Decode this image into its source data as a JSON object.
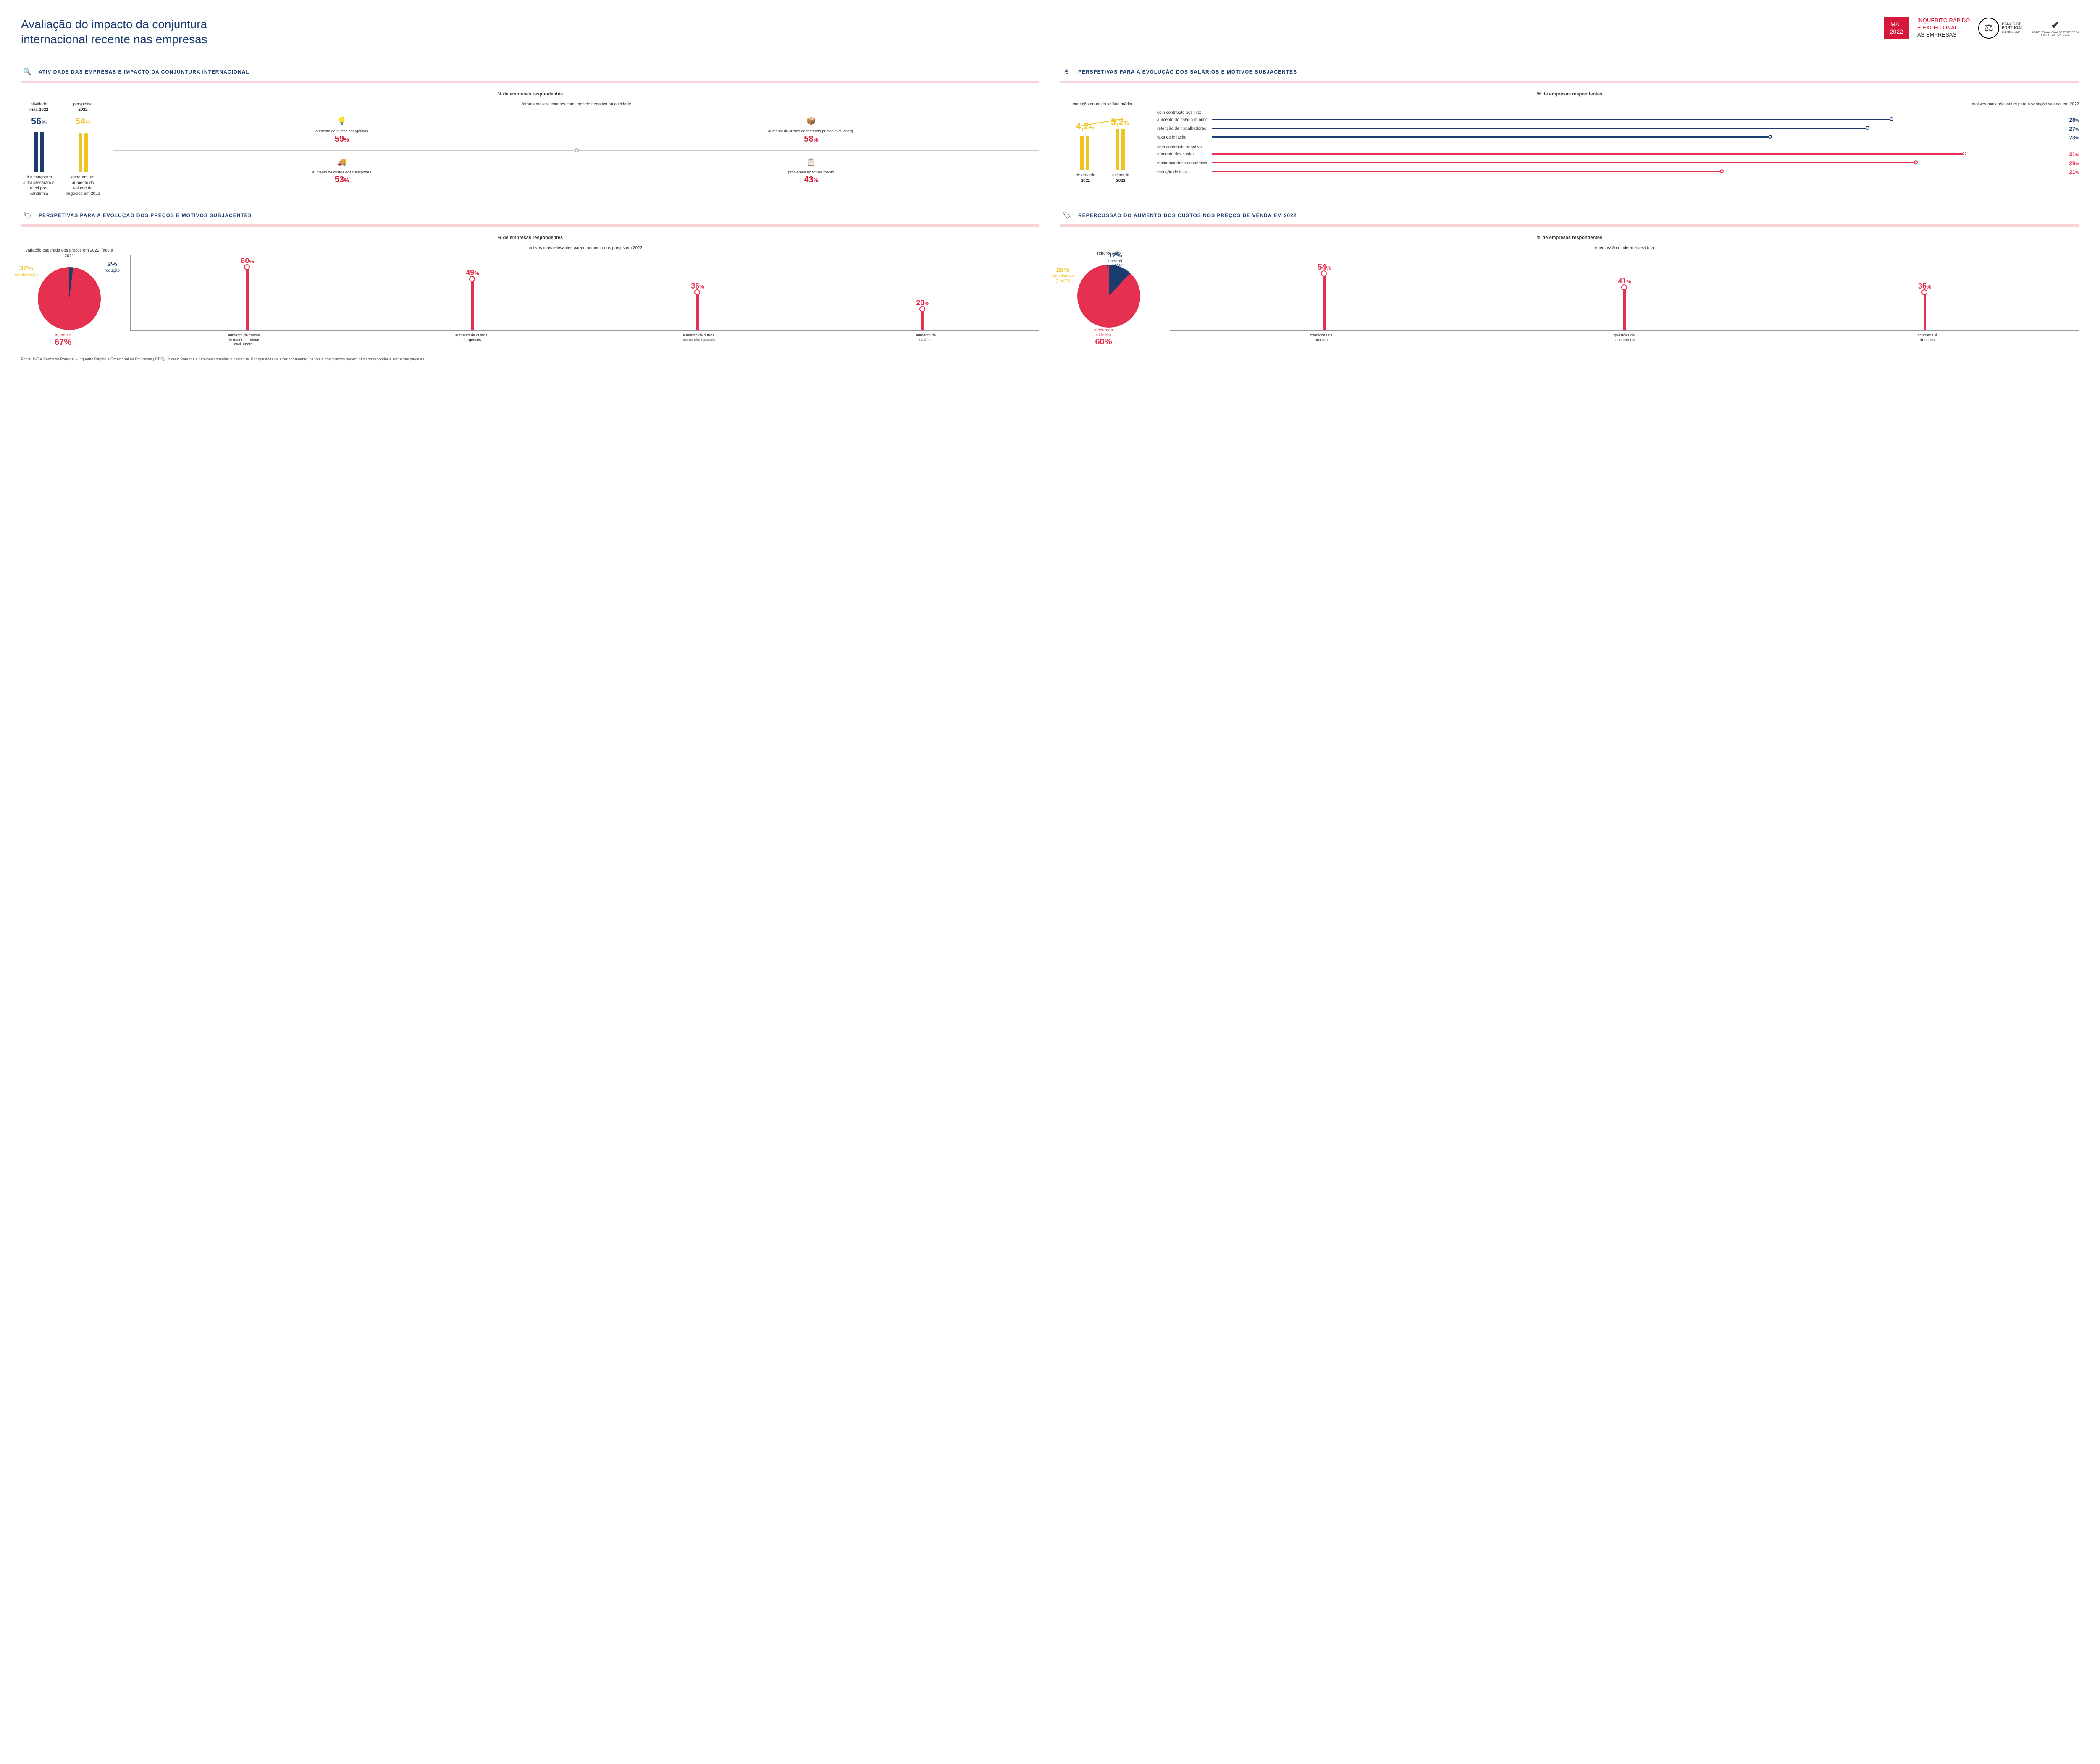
{
  "colors": {
    "navy": "#1a3d6d",
    "red": "#d4193a",
    "pinkred": "#e63050",
    "yellow": "#efc326",
    "lightpink": "#f7d3d8",
    "grey": "#666666"
  },
  "header": {
    "title_l1": "Avaliação do impacto da conjuntura",
    "title_l2": "internacional recente nas empresas",
    "date_mon": "MAI.",
    "date_year": "2022",
    "survey_l1": "INQUÉRITO RÁPIDO",
    "survey_l2": "E EXCECIONAL",
    "survey_l3": "ÀS EMPRESAS",
    "bp_l1": "BANCO DE",
    "bp_l2": "PORTUGAL",
    "bp_l3": "EUROSISTEMA",
    "ine_l1": "INSTITUTO NACIONAL DE ESTATÍSTICA",
    "ine_l2": "STATISTICS PORTUGAL"
  },
  "s1": {
    "title": "ATIVIDADE DAS EMPRESAS E IMPACTO DA CONJUNTURA INTERNACIONAL",
    "subhead": "% de empresas respondentes",
    "left_cap1_l1": "atividade",
    "left_cap1_l2": "mai. 2022",
    "left_val1": "56",
    "left_foot1": "já alcançaram /ultrapassaram o nível pré-pandemia",
    "left_cap2_l1": "perspetiva",
    "left_cap2_l2": "2022",
    "left_val2": "54",
    "left_foot2": "esperam um aumento do volume de negócios em 2022",
    "right_head": "fatores mais relevantes com impacto negativo na atividade",
    "factors": [
      {
        "icon": "💡",
        "label": "aumento de custos energéticos",
        "val": "59"
      },
      {
        "icon": "📦",
        "label": "aumento de custos de matérias-primas excl. energ.",
        "val": "58"
      },
      {
        "icon": "🚚",
        "label": "aumento de custos dos transportes",
        "val": "53"
      },
      {
        "icon": "📋",
        "label": "problemas no fornecimento",
        "val": "43"
      }
    ]
  },
  "s2": {
    "title": "PERSPETIVAS PARA A EVOLUÇÃO DOS SALÁRIOS E MOTIVOS SUBJACENTES",
    "subhead": "% de empresas respondentes",
    "left_head": "variação anual do salário médio",
    "val1": "4,2",
    "foot1_l1": "observada",
    "foot1_l2": "2021",
    "val2": "5,2",
    "foot2_l1": "estimada",
    "foot2_l2": "2022",
    "right_head": "motivos mais relevantes para a variação salarial em 2022",
    "pos_title": "com contributo positivo:",
    "pos": [
      {
        "label": "aumento do salário mínimo",
        "val": "28"
      },
      {
        "label": "retenção de trabalhadores",
        "val": "27"
      },
      {
        "label": "taxa de inflação",
        "val": "23"
      }
    ],
    "neg_title": "com contributo negativo:",
    "neg": [
      {
        "label": "aumento dos custos",
        "val": "31"
      },
      {
        "label": "maior incerteza económica",
        "val": "29"
      },
      {
        "label": "redução de lucros",
        "val": "21"
      }
    ]
  },
  "s3": {
    "title": "PERSPETIVAS PARA A EVOLUÇÃO DOS PREÇOS E MOTIVOS SUBJACENTES",
    "subhead": "% de empresas respondentes",
    "left_head": "variação esperada dos preços em 2022, face a 2021",
    "slices": [
      {
        "label": "manutenção",
        "val": "32",
        "color": "#efc326",
        "deg": 115
      },
      {
        "label": "redução",
        "val": "2",
        "color": "#1a3d6d",
        "deg": 7
      },
      {
        "label": "aumento",
        "val": "67",
        "color": "#e63050",
        "deg": 238
      }
    ],
    "right_head": "motivos mais relevantes para o aumento dos preços em 2022",
    "bars": [
      {
        "label": "aumento de custos de matérias-primas excl. energ.",
        "val": "60",
        "h": 150
      },
      {
        "label": "aumento de custos energéticos",
        "val": "49",
        "h": 122
      },
      {
        "label": "aumento de outros custos não salariais",
        "val": "36",
        "h": 90
      },
      {
        "label": "aumento de salários",
        "val": "20",
        "h": 50
      }
    ]
  },
  "s4": {
    "title": "REPERCUSSÃO DO AUMENTO DOS CUSTOS NOS PREÇOS DE VENDA EM 2022",
    "subhead": "% de empresas respondentes",
    "left_head": "repercussão",
    "slices": [
      {
        "label_l1": "significativa",
        "label_l2": "(> 50%)",
        "val": "28",
        "color": "#efc326",
        "deg": 101
      },
      {
        "label_l1": "integral",
        "label_l2": "(= 100%)",
        "val": "12",
        "color": "#1a3d6d",
        "deg": 43
      },
      {
        "label_l1": "moderada",
        "label_l2": "(< 50%)",
        "val": "60",
        "color": "#e63050",
        "deg": 216
      }
    ],
    "right_head": "repercussão moderada devido a:",
    "bars": [
      {
        "label": "condições da procura",
        "val": "54",
        "h": 135
      },
      {
        "label": "questões de concorrência",
        "val": "41",
        "h": 102
      },
      {
        "label": "contratos já firmados",
        "val": "36",
        "h": 90
      }
    ]
  },
  "footnote": "Fonte: INE e Banco de Portugal – Inquérito Rápido e Excecional às Empresas (IREE).   |   Notas: Para mais detalhes consultar o destaque. Por questões de arredondamento, os totais dos gráficos podem não corresponder à soma das parcelas."
}
